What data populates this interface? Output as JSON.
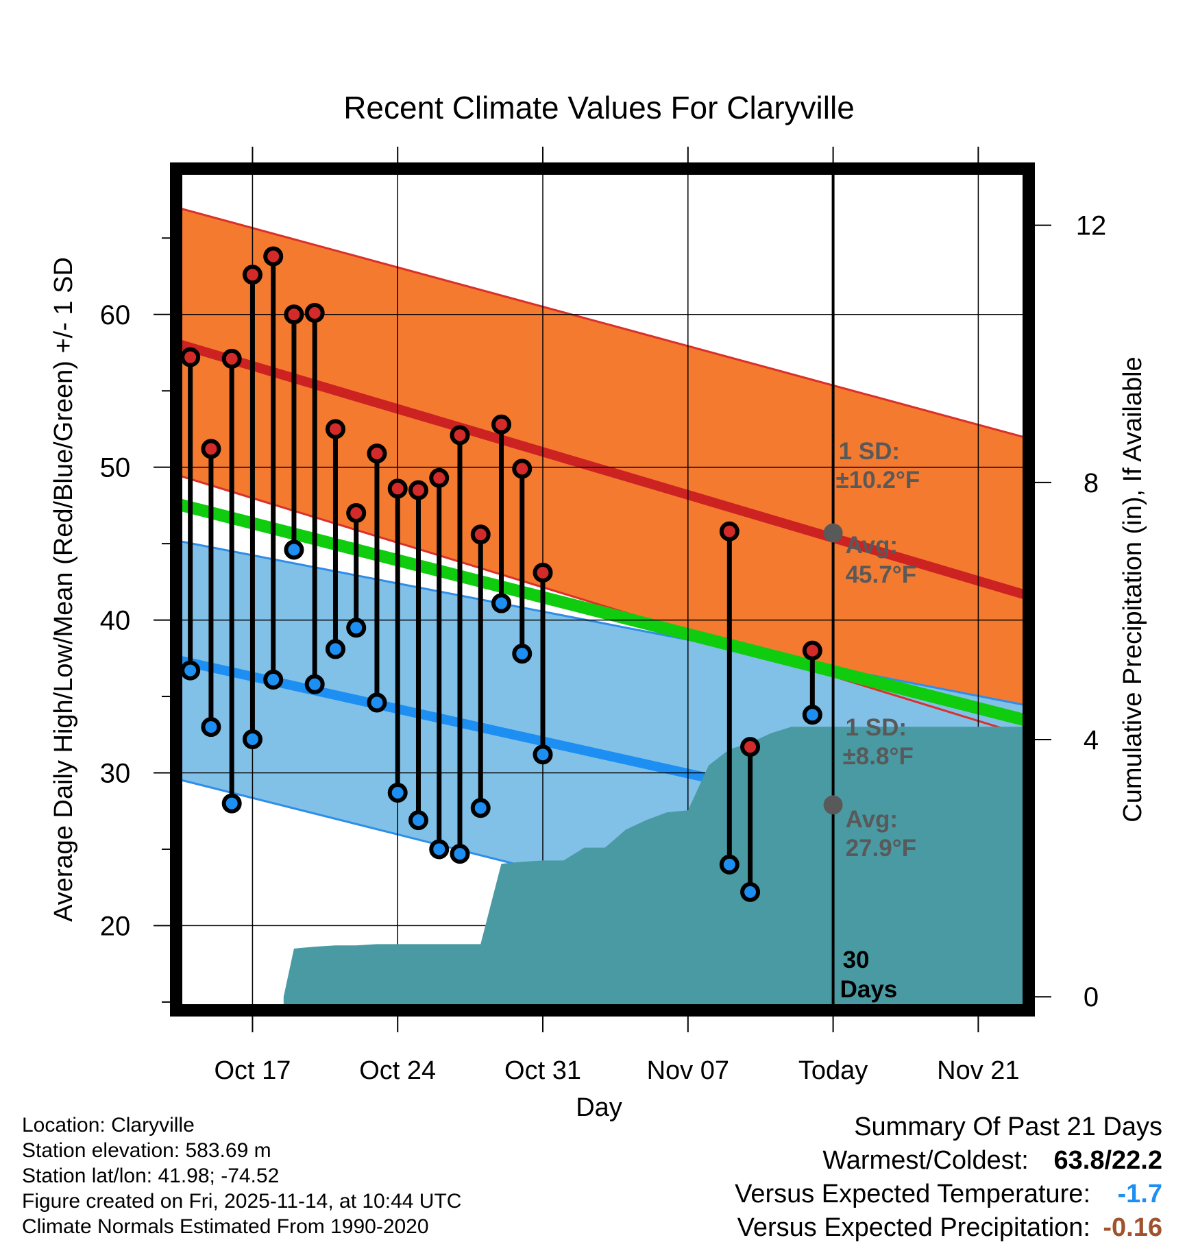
{
  "chart_data": {
    "type": "line",
    "title": "Recent Climate Values For Claryville",
    "xlabel": "Day",
    "ylabel": "Average Daily High/Low/Mean (Red/Blue/Green) +/- 1 SD",
    "y2label": "Cumulative Precipitation (in), If Available",
    "x_ticks": [
      {
        "day": 3,
        "label": "Oct 17"
      },
      {
        "day": 10,
        "label": "Oct 24"
      },
      {
        "day": 17,
        "label": "Oct 31"
      },
      {
        "day": 24,
        "label": "Nov 07"
      },
      {
        "day": 31,
        "label": "Today"
      },
      {
        "day": 38,
        "label": "Nov 21"
      }
    ],
    "x_range_days": [
      -0.65,
      40.4
    ],
    "x_reference_date": "Oct 14",
    "ylim": [
      14.5,
      69.5
    ],
    "y_ticks": [
      20,
      30,
      40,
      50,
      60
    ],
    "y2lim": [
      -0.2,
      12.87
    ],
    "y2_ticks": [
      0,
      4,
      8,
      12
    ],
    "normals": {
      "high_avg": {
        "start": 58.1,
        "end": 41.6
      },
      "high_sd_upper": {
        "start": 67.0,
        "end": 51.9
      },
      "high_sd_lower": {
        "start": 49.5,
        "end": 32.4
      },
      "low_avg": {
        "start": 37.4,
        "end": 25.0
      },
      "low_sd_upper": {
        "start": 45.2,
        "end": 34.4
      },
      "low_sd_lower": {
        "start": 29.6,
        "end": 15.6
      },
      "mean_avg": {
        "start": 47.6,
        "end": 33.4
      }
    },
    "annotations": {
      "high_sd_line1": "1 SD:",
      "high_sd_line2": "±10.2°F",
      "high_avg_line1": "Avg:",
      "high_avg_line2": "45.7°F",
      "low_sd_line1": "1 SD:",
      "low_sd_line2": "±8.8°F",
      "low_avg_line1": "Avg:",
      "low_avg_line2": "27.9°F",
      "today_marker_high": 45.7,
      "today_marker_low": 27.9,
      "window_line1": "30",
      "window_line2": "Days"
    },
    "daily": [
      {
        "day": 0,
        "high": 57.2,
        "low": 36.7
      },
      {
        "day": 1,
        "high": 51.2,
        "low": 33.0
      },
      {
        "day": 2,
        "high": 57.1,
        "low": 28.0
      },
      {
        "day": 3,
        "high": 62.6,
        "low": 32.2
      },
      {
        "day": 4,
        "high": 63.8,
        "low": 36.1
      },
      {
        "day": 5,
        "high": 60.0,
        "low": 44.6
      },
      {
        "day": 6,
        "high": 60.1,
        "low": 35.8
      },
      {
        "day": 7,
        "high": 52.5,
        "low": 38.1
      },
      {
        "day": 8,
        "high": 47.0,
        "low": 39.5
      },
      {
        "day": 9,
        "high": 50.9,
        "low": 34.6
      },
      {
        "day": 10,
        "high": 48.6,
        "low": 28.7
      },
      {
        "day": 11,
        "high": 48.5,
        "low": 26.9
      },
      {
        "day": 12,
        "high": 49.3,
        "low": 25.0
      },
      {
        "day": 13,
        "high": 52.1,
        "low": 24.7
      },
      {
        "day": 14,
        "high": 45.6,
        "low": 27.7
      },
      {
        "day": 15,
        "high": 52.8,
        "low": 41.1
      },
      {
        "day": 16,
        "high": 49.9,
        "low": 37.8
      },
      {
        "day": 17,
        "high": 43.1,
        "low": 31.2
      },
      {
        "day": 26,
        "high": 45.8,
        "low": 24.0
      },
      {
        "day": 27,
        "high": 31.7,
        "low": 22.2
      },
      {
        "day": 30,
        "high": 38.0,
        "low": 33.8
      }
    ],
    "precipitation": [
      {
        "day": 4.5,
        "value": 0.0
      },
      {
        "day": 5.0,
        "value": 0.75
      },
      {
        "day": 6.0,
        "value": 0.78
      },
      {
        "day": 7.0,
        "value": 0.8
      },
      {
        "day": 8.0,
        "value": 0.8
      },
      {
        "day": 9.0,
        "value": 0.82
      },
      {
        "day": 10.0,
        "value": 0.82
      },
      {
        "day": 11.0,
        "value": 0.82
      },
      {
        "day": 12.0,
        "value": 0.82
      },
      {
        "day": 13.0,
        "value": 0.82
      },
      {
        "day": 14.0,
        "value": 0.82
      },
      {
        "day": 15.0,
        "value": 2.07
      },
      {
        "day": 16.0,
        "value": 2.1
      },
      {
        "day": 17.0,
        "value": 2.12
      },
      {
        "day": 18.0,
        "value": 2.12
      },
      {
        "day": 19.0,
        "value": 2.32
      },
      {
        "day": 20.0,
        "value": 2.32
      },
      {
        "day": 21.0,
        "value": 2.6
      },
      {
        "day": 22.0,
        "value": 2.75
      },
      {
        "day": 23.0,
        "value": 2.87
      },
      {
        "day": 24.0,
        "value": 2.9
      },
      {
        "day": 25.0,
        "value": 3.6
      },
      {
        "day": 26.0,
        "value": 3.85
      },
      {
        "day": 27.0,
        "value": 3.95
      },
      {
        "day": 28.0,
        "value": 4.1
      },
      {
        "day": 29.0,
        "value": 4.2
      },
      {
        "day": 30.0,
        "value": 4.2
      },
      {
        "day": 31.0,
        "value": 4.2
      },
      {
        "day": 40.4,
        "value": 4.2
      }
    ],
    "colors": {
      "high_band": "#f47a30",
      "high_avg": "#cc2222",
      "high_sd_edge": "#d9302a",
      "low_band": "#82c1e7",
      "low_avg": "#1e8ff2",
      "low_sd_edge": "#2e8de8",
      "mean": "#0fcc0f",
      "precip": "#4a9aa4",
      "high_dot": "#d42a2a",
      "low_dot": "#1e8ff2",
      "annotation": "#595959",
      "frame": "#000000"
    }
  },
  "footer": {
    "location": "Location: Claryville",
    "elevation": "Station elevation: 583.69 m",
    "latlon": "Station lat/lon: 41.98; -74.52",
    "created": "Figure created on Fri, 2025-11-14, at 10:44 UTC",
    "normals": "Climate Normals Estimated From 1990-2020"
  },
  "summary": {
    "title": "Summary Of Past 21 Days",
    "warm_cold_label": "Warmest/Coldest:",
    "warm_cold_value": "63.8/22.2",
    "temp_label": "Versus Expected Temperature:",
    "temp_value": "-1.7",
    "temp_color": "#1e8ff2",
    "precip_label": "Versus Expected Precipitation:",
    "precip_value": "-0.16",
    "precip_color": "#a0522d"
  }
}
